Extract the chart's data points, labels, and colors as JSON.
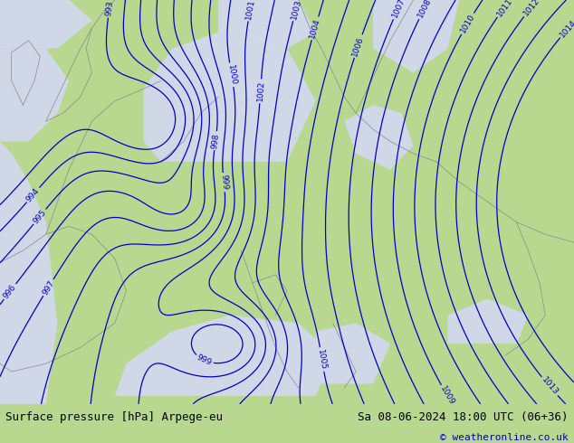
{
  "title_left": "Surface pressure [hPa] Arpege-eu",
  "title_right": "Sa 08-06-2024 18:00 UTC (06+36)",
  "copyright": "© weatheronline.co.uk",
  "bg_color": "#b8d890",
  "land_color": "#b8d890",
  "sea_color": "#d0d8e8",
  "contour_color": "#0000cc",
  "bottom_bar_color": "#e8e8e8",
  "bottom_text_color": "#000000",
  "copyright_color": "#0000cc",
  "figsize": [
    6.34,
    4.9
  ],
  "dpi": 100,
  "bottom_bar_height": 0.088,
  "font_size_bottom": 9,
  "font_size_copyright": 8
}
